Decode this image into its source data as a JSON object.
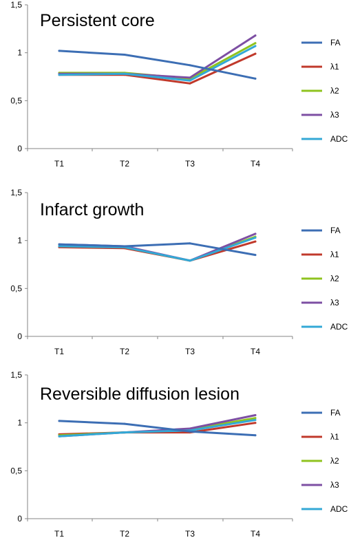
{
  "chart_data": [
    {
      "type": "line",
      "title": "Persistent core",
      "categories": [
        "T1",
        "T2",
        "T3",
        "T4"
      ],
      "ylim": [
        0,
        1.5
      ],
      "yticks": [
        "0",
        "0,5",
        "1",
        "1,5"
      ],
      "legend": "right",
      "grid": false,
      "series": [
        {
          "name": "FA",
          "color": "#3c6eb4",
          "values": [
            1.02,
            0.98,
            0.87,
            0.73
          ]
        },
        {
          "name": "λ1",
          "color": "#c0392b",
          "values": [
            0.77,
            0.77,
            0.68,
            0.99
          ]
        },
        {
          "name": "λ2",
          "color": "#8fc31f",
          "values": [
            0.79,
            0.79,
            0.73,
            1.1
          ]
        },
        {
          "name": "λ3",
          "color": "#7d4fa3",
          "values": [
            0.78,
            0.78,
            0.74,
            1.18
          ]
        },
        {
          "name": "ADC",
          "color": "#33a8d6",
          "values": [
            0.77,
            0.78,
            0.71,
            1.07
          ]
        }
      ]
    },
    {
      "type": "line",
      "title": "Infarct growth",
      "categories": [
        "T1",
        "T2",
        "T3",
        "T4"
      ],
      "ylim": [
        0,
        1.5
      ],
      "yticks": [
        "0",
        "0,5",
        "1",
        "1,5"
      ],
      "legend": "right",
      "grid": false,
      "series": [
        {
          "name": "FA",
          "color": "#3c6eb4",
          "values": [
            0.96,
            0.94,
            0.97,
            0.85
          ]
        },
        {
          "name": "λ1",
          "color": "#c0392b",
          "values": [
            0.93,
            0.92,
            0.79,
            0.99
          ]
        },
        {
          "name": "λ2",
          "color": "#8fc31f",
          "values": [
            0.94,
            0.93,
            0.79,
            1.04
          ]
        },
        {
          "name": "λ3",
          "color": "#7d4fa3",
          "values": [
            0.96,
            0.94,
            0.79,
            1.07
          ]
        },
        {
          "name": "ADC",
          "color": "#33a8d6",
          "values": [
            0.94,
            0.93,
            0.79,
            1.03
          ]
        }
      ]
    },
    {
      "type": "line",
      "title": "Reversible diffusion lesion",
      "categories": [
        "T1",
        "T2",
        "T3",
        "T4"
      ],
      "ylim": [
        0,
        1.5
      ],
      "yticks": [
        "0",
        "0,5",
        "1",
        "1,5"
      ],
      "legend": "right",
      "grid": false,
      "series": [
        {
          "name": "FA",
          "color": "#3c6eb4",
          "values": [
            1.02,
            0.99,
            0.91,
            0.87
          ]
        },
        {
          "name": "λ1",
          "color": "#c0392b",
          "values": [
            0.88,
            0.9,
            0.9,
            1.0
          ]
        },
        {
          "name": "λ2",
          "color": "#8fc31f",
          "values": [
            0.87,
            0.9,
            0.93,
            1.05
          ]
        },
        {
          "name": "λ3",
          "color": "#7d4fa3",
          "values": [
            0.86,
            0.9,
            0.94,
            1.08
          ]
        },
        {
          "name": "ADC",
          "color": "#33a8d6",
          "values": [
            0.86,
            0.9,
            0.92,
            1.03
          ]
        }
      ]
    }
  ]
}
